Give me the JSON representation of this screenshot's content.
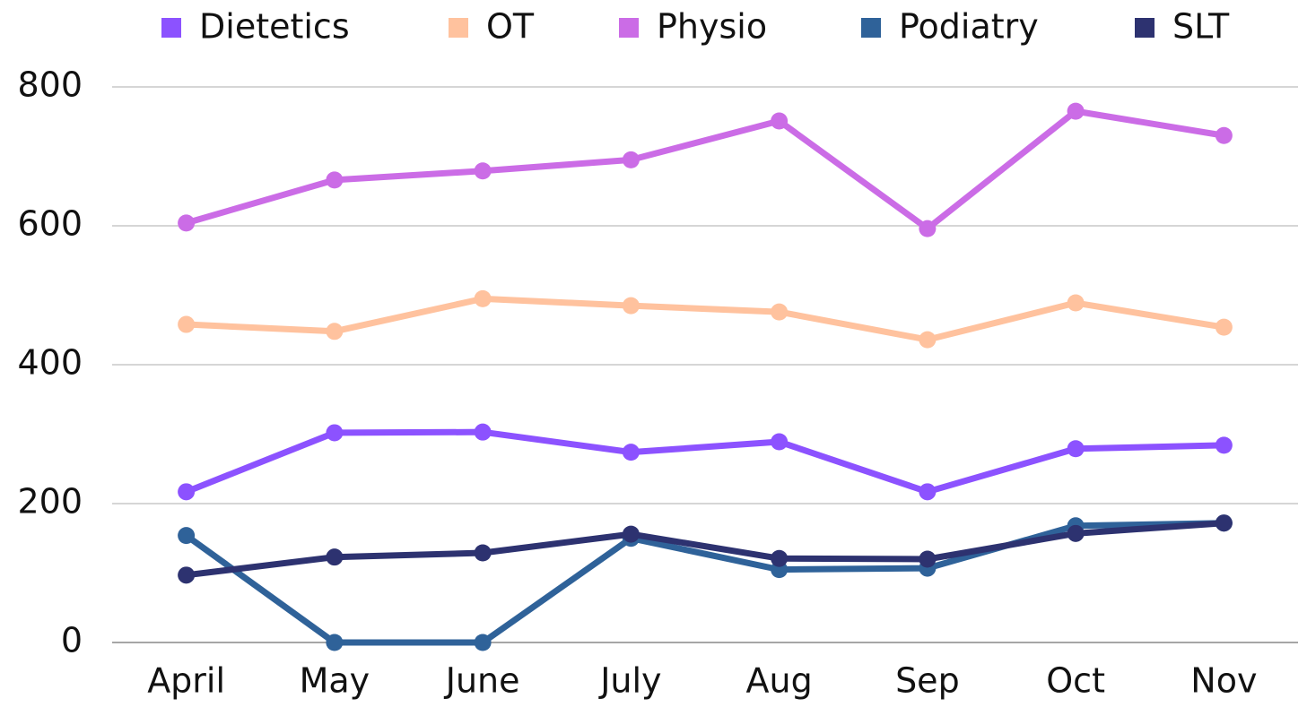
{
  "chart_data": {
    "type": "line",
    "categories": [
      "April",
      "May",
      "June",
      "July",
      "Aug",
      "Sep",
      "Oct",
      "Nov"
    ],
    "series": [
      {
        "name": "Dietetics",
        "color": "#8c52ff",
        "values": [
          217,
          302,
          303,
          274,
          289,
          217,
          279,
          284
        ]
      },
      {
        "name": "OT",
        "color": "#ffc29e",
        "values": [
          458,
          448,
          495,
          485,
          476,
          436,
          489,
          454
        ]
      },
      {
        "name": "Physio",
        "color": "#cb6ce6",
        "values": [
          604,
          666,
          679,
          695,
          751,
          596,
          765,
          730
        ]
      },
      {
        "name": "Podiatry",
        "color": "#2f6299",
        "values": [
          154,
          0,
          0,
          150,
          105,
          107,
          168,
          172
        ]
      },
      {
        "name": "SLT",
        "color": "#2d3270",
        "values": [
          97,
          123,
          129,
          156,
          121,
          120,
          157,
          172
        ]
      }
    ],
    "ylim": [
      0,
      800
    ],
    "yticks": [
      0,
      200,
      400,
      600,
      800
    ],
    "grid": true,
    "legend": "top"
  }
}
